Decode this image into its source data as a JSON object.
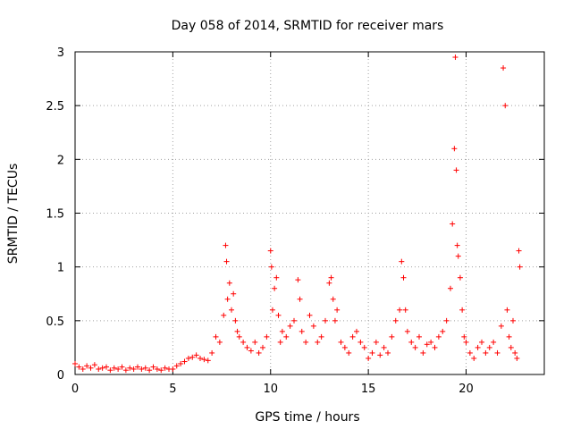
{
  "chart_data": {
    "type": "scatter",
    "title": "Day 058 of 2014, SRMTID for receiver mars",
    "xlabel": "GPS time / hours",
    "ylabel": "SRMTID / TECUs",
    "xlim": [
      0,
      24
    ],
    "ylim": [
      0,
      3
    ],
    "grid": true,
    "marker": "plus",
    "color": "#ff0000",
    "xticks": [
      0,
      5,
      10,
      15,
      20
    ],
    "xtick_labels": [
      "0",
      "5",
      "10",
      "15",
      "20"
    ],
    "yticks": [
      0,
      0.5,
      1,
      1.5,
      2,
      2.5,
      3
    ],
    "ytick_labels": [
      "0",
      "0.5",
      "1",
      "1.5",
      "2",
      "2.5",
      "3"
    ],
    "series": [
      {
        "name": "SRMTID",
        "x": [
          0.0,
          0.2,
          0.4,
          0.6,
          0.8,
          1.0,
          1.2,
          1.4,
          1.6,
          1.8,
          2.0,
          2.2,
          2.4,
          2.6,
          2.8,
          3.0,
          3.2,
          3.4,
          3.6,
          3.8,
          4.0,
          4.2,
          4.4,
          4.6,
          4.8,
          5.0,
          5.2,
          5.4,
          5.6,
          5.8,
          6.0,
          6.2,
          6.4,
          6.6,
          6.8,
          7.0,
          7.2,
          7.4,
          7.6,
          7.7,
          7.75,
          7.8,
          7.9,
          8.0,
          8.1,
          8.2,
          8.3,
          8.4,
          8.6,
          8.8,
          9.0,
          9.2,
          9.4,
          9.6,
          9.8,
          10.0,
          10.05,
          10.1,
          10.2,
          10.3,
          10.4,
          10.5,
          10.6,
          10.8,
          11.0,
          11.2,
          11.4,
          11.5,
          11.6,
          11.8,
          12.0,
          12.2,
          12.4,
          12.6,
          12.8,
          13.0,
          13.1,
          13.2,
          13.3,
          13.4,
          13.6,
          13.8,
          14.0,
          14.2,
          14.4,
          14.6,
          14.8,
          15.0,
          15.2,
          15.4,
          15.6,
          15.8,
          16.0,
          16.2,
          16.4,
          16.6,
          16.7,
          16.8,
          16.9,
          17.0,
          17.2,
          17.4,
          17.6,
          17.8,
          18.0,
          18.2,
          18.4,
          18.6,
          18.8,
          19.0,
          19.2,
          19.3,
          19.4,
          19.45,
          19.5,
          19.55,
          19.6,
          19.7,
          19.8,
          19.9,
          20.0,
          20.2,
          20.4,
          20.6,
          20.8,
          21.0,
          21.2,
          21.4,
          21.6,
          21.8,
          21.9,
          22.0,
          22.1,
          22.2,
          22.3,
          22.4,
          22.5,
          22.6,
          22.7,
          22.75
        ],
        "y": [
          0.1,
          0.07,
          0.05,
          0.08,
          0.06,
          0.09,
          0.05,
          0.06,
          0.07,
          0.04,
          0.06,
          0.05,
          0.07,
          0.04,
          0.06,
          0.05,
          0.07,
          0.05,
          0.06,
          0.04,
          0.07,
          0.05,
          0.04,
          0.06,
          0.05,
          0.05,
          0.08,
          0.1,
          0.12,
          0.15,
          0.16,
          0.18,
          0.15,
          0.14,
          0.13,
          0.2,
          0.35,
          0.3,
          0.55,
          1.2,
          1.05,
          0.7,
          0.85,
          0.6,
          0.75,
          0.5,
          0.4,
          0.35,
          0.3,
          0.25,
          0.22,
          0.3,
          0.2,
          0.25,
          0.35,
          1.15,
          1.0,
          0.6,
          0.8,
          0.9,
          0.55,
          0.3,
          0.4,
          0.35,
          0.45,
          0.5,
          0.88,
          0.7,
          0.4,
          0.3,
          0.55,
          0.45,
          0.3,
          0.35,
          0.5,
          0.85,
          0.9,
          0.7,
          0.5,
          0.6,
          0.3,
          0.25,
          0.2,
          0.35,
          0.4,
          0.3,
          0.25,
          0.15,
          0.2,
          0.3,
          0.18,
          0.25,
          0.2,
          0.35,
          0.5,
          0.6,
          1.05,
          0.9,
          0.6,
          0.4,
          0.3,
          0.25,
          0.35,
          0.2,
          0.28,
          0.3,
          0.25,
          0.35,
          0.4,
          0.5,
          0.8,
          1.4,
          2.1,
          2.95,
          1.9,
          1.2,
          1.1,
          0.9,
          0.6,
          0.35,
          0.3,
          0.2,
          0.15,
          0.25,
          0.3,
          0.2,
          0.25,
          0.3,
          0.2,
          0.45,
          2.85,
          2.5,
          0.6,
          0.35,
          0.25,
          0.5,
          0.2,
          0.15,
          1.15,
          1.0
        ]
      }
    ]
  }
}
